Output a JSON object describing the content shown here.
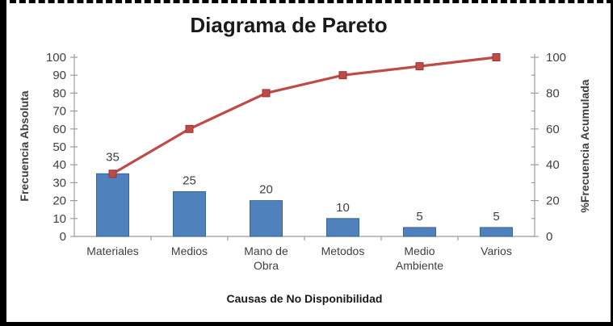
{
  "title": "Diagrama de Pareto",
  "chart_data": {
    "type": "bar",
    "subtype": "pareto-combo",
    "title": "Diagrama de Pareto",
    "xlabel": "Causas de No Disponibilidad",
    "categories": [
      "Materiales",
      "Medios",
      "Mano de Obra",
      "Metodos",
      "Medio Ambiente",
      "Varios"
    ],
    "category_lines": [
      [
        "Materiales"
      ],
      [
        "Medios"
      ],
      [
        "Mano de",
        "Obra"
      ],
      [
        "Metodos"
      ],
      [
        "Medio",
        "Ambiente"
      ],
      [
        "Varios"
      ]
    ],
    "series": [
      {
        "name": "Frecuencia Absoluta",
        "type": "bar",
        "values": [
          35,
          25,
          20,
          10,
          5,
          5
        ],
        "data_labels": [
          "35",
          "25",
          "20",
          "10",
          "5",
          "5"
        ],
        "color": "#4f81bd",
        "border_color": "#3a6596"
      },
      {
        "name": "%Frecuencia Acumulada",
        "type": "line",
        "values": [
          35,
          60,
          80,
          90,
          95,
          100
        ],
        "color": "#bf4b47",
        "marker": "square",
        "marker_border_color": "#953735"
      }
    ],
    "left_axis": {
      "title": "Frecuencia Absoluta",
      "min": 0,
      "max": 100,
      "major_step": 10,
      "tick_labels": [
        "0",
        "10",
        "20",
        "30",
        "40",
        "50",
        "60",
        "70",
        "80",
        "90",
        "100"
      ]
    },
    "right_axis": {
      "title": "%Frecuencia Acumulada",
      "min": 0,
      "max": 100,
      "major_step": 20,
      "minor_step": 10,
      "tick_labels": [
        "0",
        "20",
        "40",
        "60",
        "80",
        "100"
      ]
    },
    "legend": "none",
    "grid": false,
    "axis_color": "#9c9c9c",
    "text_color": "#3f3f3f"
  }
}
